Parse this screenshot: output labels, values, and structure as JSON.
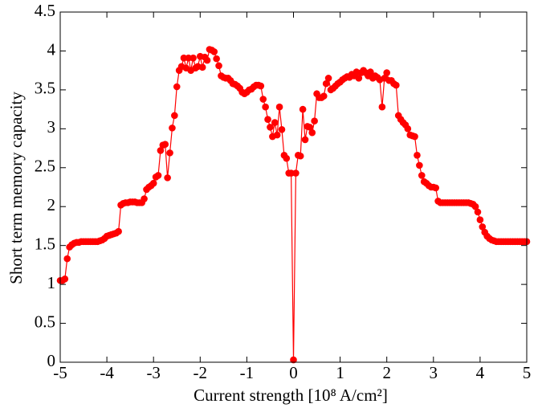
{
  "chart_data": {
    "type": "line",
    "x_label": "Current strength [10⁸ A/cm²]",
    "y_label": "Short term memory capacity",
    "xlim": [
      -5,
      5
    ],
    "ylim": [
      0,
      4.5
    ],
    "xticks": [
      -5,
      -4,
      -3,
      -2,
      -1,
      0,
      1,
      2,
      3,
      4,
      5
    ],
    "yticks": [
      0,
      0.5,
      1,
      1.5,
      2,
      2.5,
      3,
      3.5,
      4,
      4.5
    ],
    "grid": false,
    "series": [
      {
        "color": "#ff0000",
        "x": [
          -5.0,
          -4.95,
          -4.9,
          -4.85,
          -4.8,
          -4.75,
          -4.7,
          -4.65,
          -4.6,
          -4.55,
          -4.5,
          -4.45,
          -4.4,
          -4.35,
          -4.3,
          -4.25,
          -4.2,
          -4.15,
          -4.1,
          -4.05,
          -4.0,
          -3.95,
          -3.9,
          -3.85,
          -3.8,
          -3.75,
          -3.7,
          -3.65,
          -3.6,
          -3.55,
          -3.5,
          -3.45,
          -3.4,
          -3.35,
          -3.3,
          -3.25,
          -3.2,
          -3.15,
          -3.1,
          -3.05,
          -3.0,
          -2.95,
          -2.9,
          -2.85,
          -2.8,
          -2.75,
          -2.7,
          -2.65,
          -2.6,
          -2.55,
          -2.5,
          -2.45,
          -2.4,
          -2.35,
          -2.3,
          -2.25,
          -2.2,
          -2.15,
          -2.1,
          -2.05,
          -2.0,
          -1.95,
          -1.9,
          -1.85,
          -1.8,
          -1.75,
          -1.7,
          -1.65,
          -1.6,
          -1.55,
          -1.5,
          -1.45,
          -1.4,
          -1.35,
          -1.3,
          -1.25,
          -1.2,
          -1.15,
          -1.1,
          -1.05,
          -1.0,
          -0.95,
          -0.9,
          -0.85,
          -0.8,
          -0.75,
          -0.7,
          -0.65,
          -0.6,
          -0.55,
          -0.5,
          -0.45,
          -0.4,
          -0.35,
          -0.3,
          -0.25,
          -0.2,
          -0.15,
          -0.1,
          -0.05,
          0.0,
          0.05,
          0.1,
          0.15,
          0.2,
          0.25,
          0.3,
          0.35,
          0.4,
          0.45,
          0.5,
          0.55,
          0.6,
          0.65,
          0.7,
          0.75,
          0.8,
          0.85,
          0.9,
          0.95,
          1.0,
          1.05,
          1.1,
          1.15,
          1.2,
          1.25,
          1.3,
          1.35,
          1.4,
          1.45,
          1.5,
          1.55,
          1.6,
          1.65,
          1.7,
          1.75,
          1.8,
          1.85,
          1.9,
          1.95,
          2.0,
          2.05,
          2.1,
          2.15,
          2.2,
          2.25,
          2.3,
          2.35,
          2.4,
          2.45,
          2.5,
          2.55,
          2.6,
          2.65,
          2.7,
          2.75,
          2.8,
          2.85,
          2.9,
          2.95,
          3.0,
          3.05,
          3.1,
          3.15,
          3.2,
          3.25,
          3.3,
          3.35,
          3.4,
          3.45,
          3.5,
          3.55,
          3.6,
          3.65,
          3.7,
          3.75,
          3.8,
          3.85,
          3.9,
          3.95,
          4.0,
          4.05,
          4.1,
          4.15,
          4.2,
          4.25,
          4.3,
          4.35,
          4.4,
          4.45,
          4.5,
          4.55,
          4.6,
          4.65,
          4.7,
          4.75,
          4.8,
          4.85,
          4.9,
          4.95,
          5.0
        ],
        "values": [
          1.05,
          1.05,
          1.07,
          1.33,
          1.48,
          1.51,
          1.53,
          1.54,
          1.54,
          1.55,
          1.55,
          1.55,
          1.55,
          1.55,
          1.55,
          1.55,
          1.55,
          1.56,
          1.57,
          1.59,
          1.62,
          1.63,
          1.64,
          1.65,
          1.66,
          1.68,
          2.02,
          2.04,
          2.05,
          2.05,
          2.06,
          2.06,
          2.06,
          2.05,
          2.05,
          2.05,
          2.1,
          2.22,
          2.25,
          2.27,
          2.3,
          2.38,
          2.4,
          2.72,
          2.79,
          2.8,
          2.37,
          2.69,
          3.01,
          3.17,
          3.54,
          3.75,
          3.8,
          3.91,
          3.78,
          3.91,
          3.75,
          3.91,
          3.78,
          3.8,
          3.93,
          3.79,
          3.92,
          3.88,
          4.02,
          4.01,
          3.99,
          3.9,
          3.81,
          3.68,
          3.66,
          3.65,
          3.65,
          3.62,
          3.58,
          3.57,
          3.55,
          3.52,
          3.47,
          3.45,
          3.47,
          3.5,
          3.51,
          3.54,
          3.56,
          3.56,
          3.55,
          3.38,
          3.28,
          3.12,
          3.02,
          2.9,
          3.08,
          2.92,
          3.28,
          2.99,
          2.66,
          2.62,
          2.43,
          2.43,
          0.03,
          2.43,
          2.66,
          2.65,
          3.25,
          2.86,
          3.03,
          3.02,
          2.95,
          3.1,
          3.45,
          3.4,
          3.4,
          3.42,
          3.58,
          3.65,
          3.5,
          3.52,
          3.55,
          3.58,
          3.6,
          3.63,
          3.65,
          3.67,
          3.66,
          3.7,
          3.68,
          3.73,
          3.65,
          3.72,
          3.75,
          3.72,
          3.68,
          3.73,
          3.65,
          3.68,
          3.66,
          3.63,
          3.28,
          3.65,
          3.72,
          3.62,
          3.62,
          3.58,
          3.56,
          3.17,
          3.12,
          3.08,
          3.05,
          3.0,
          2.92,
          2.91,
          2.9,
          2.66,
          2.53,
          2.4,
          2.32,
          2.3,
          2.27,
          2.25,
          2.25,
          2.24,
          2.07,
          2.05,
          2.05,
          2.05,
          2.05,
          2.05,
          2.05,
          2.05,
          2.05,
          2.05,
          2.05,
          2.05,
          2.05,
          2.05,
          2.04,
          2.03,
          2.0,
          1.93,
          1.83,
          1.74,
          1.67,
          1.62,
          1.59,
          1.57,
          1.56,
          1.55,
          1.55,
          1.55,
          1.55,
          1.55,
          1.55,
          1.55,
          1.55,
          1.55,
          1.55,
          1.55,
          1.55,
          1.55,
          1.55
        ]
      }
    ]
  }
}
